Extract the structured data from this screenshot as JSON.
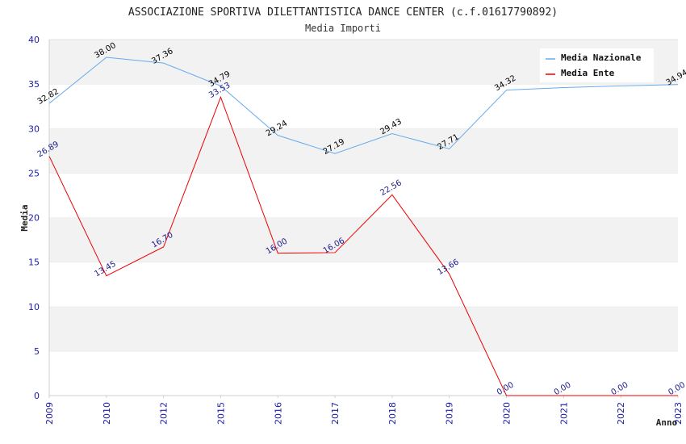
{
  "chart_data": {
    "type": "line",
    "title": "ASSOCIAZIONE SPORTIVA DILETTANTISTICA DANCE CENTER (c.f.01617790892)",
    "subtitle": "Media Importi",
    "xlabel": "Anno",
    "ylabel": "Media",
    "ylim": [
      0,
      40
    ],
    "yticks": [
      0,
      5,
      10,
      15,
      20,
      25,
      30,
      35,
      40
    ],
    "categories": [
      "2009",
      "2010",
      "2012",
      "2015",
      "2016",
      "2017",
      "2018",
      "2019",
      "2020",
      "2021",
      "2022",
      "2023"
    ],
    "series": [
      {
        "name": "Media Nazionale",
        "color": "#66aaee",
        "values": [
          32.82,
          38.0,
          37.36,
          34.79,
          29.24,
          27.19,
          29.43,
          27.71,
          34.32,
          null,
          null,
          34.94
        ],
        "line_values": [
          32.82,
          38.0,
          37.36,
          34.79,
          29.24,
          27.19,
          29.43,
          27.71,
          34.32,
          34.6,
          34.8,
          34.94
        ],
        "labels": [
          "32.82",
          "38.00",
          "37.36",
          "34.79",
          "29.24",
          "27.19",
          "29.43",
          "27.71",
          "34.32",
          "",
          "",
          "34.94"
        ]
      },
      {
        "name": "Media Ente",
        "color": "#ee0000",
        "values": [
          26.89,
          13.45,
          16.7,
          33.53,
          16.0,
          16.06,
          22.56,
          13.66,
          0.0,
          0.0,
          0.0,
          0.0
        ],
        "labels": [
          "26.89",
          "13.45",
          "16.70",
          "33.53",
          "16.00",
          "16.06",
          "22.56",
          "13.66",
          "0.00",
          "0.00",
          "0.00",
          "0.00"
        ]
      }
    ],
    "grid": true,
    "grid_style": "alternating horizontal bands",
    "legend_position": "top-right"
  }
}
